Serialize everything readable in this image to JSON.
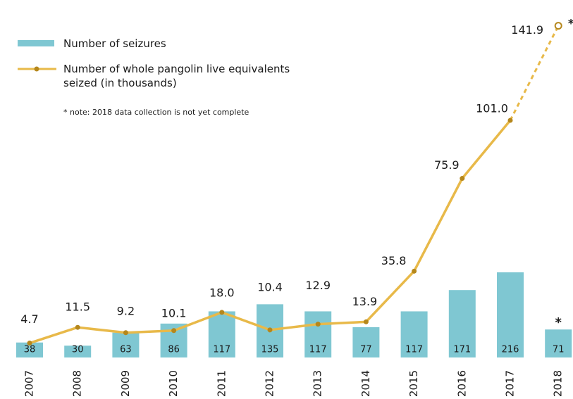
{
  "chart_data": {
    "type": "bar_line",
    "categories": [
      "2007",
      "2008",
      "2009",
      "2010",
      "2011",
      "2012",
      "2013",
      "2014",
      "2015",
      "2016",
      "2017",
      "2018"
    ],
    "series": [
      {
        "name": "Number of seizures",
        "type": "bar",
        "color": "#7fc7d2",
        "values": [
          38,
          30,
          63,
          86,
          117,
          135,
          117,
          77,
          117,
          171,
          216,
          71
        ]
      },
      {
        "name": "Number of whole pangolin live equivalents seized (in thousands)",
        "type": "line",
        "axis": "y2",
        "color": "#e8b949",
        "marker_color": "#b5871c",
        "values": [
          4.7,
          11.5,
          9.2,
          10.1,
          18.0,
          10.4,
          12.9,
          13.9,
          35.8,
          75.9,
          101.0,
          141.9
        ],
        "value_labels": [
          "4.7",
          "11.5",
          "9.2",
          "10.1",
          "18.0",
          "10.4",
          "12.9",
          "13.9",
          "35.8",
          "75.9",
          "101.0",
          "141.9"
        ],
        "dashed_last": true
      }
    ],
    "note": "* note: 2018 data collection is not yet complete",
    "annotations": [
      "*",
      "*"
    ],
    "ylim": [
      0,
      880
    ],
    "y2lim": [
      0,
      150
    ]
  }
}
